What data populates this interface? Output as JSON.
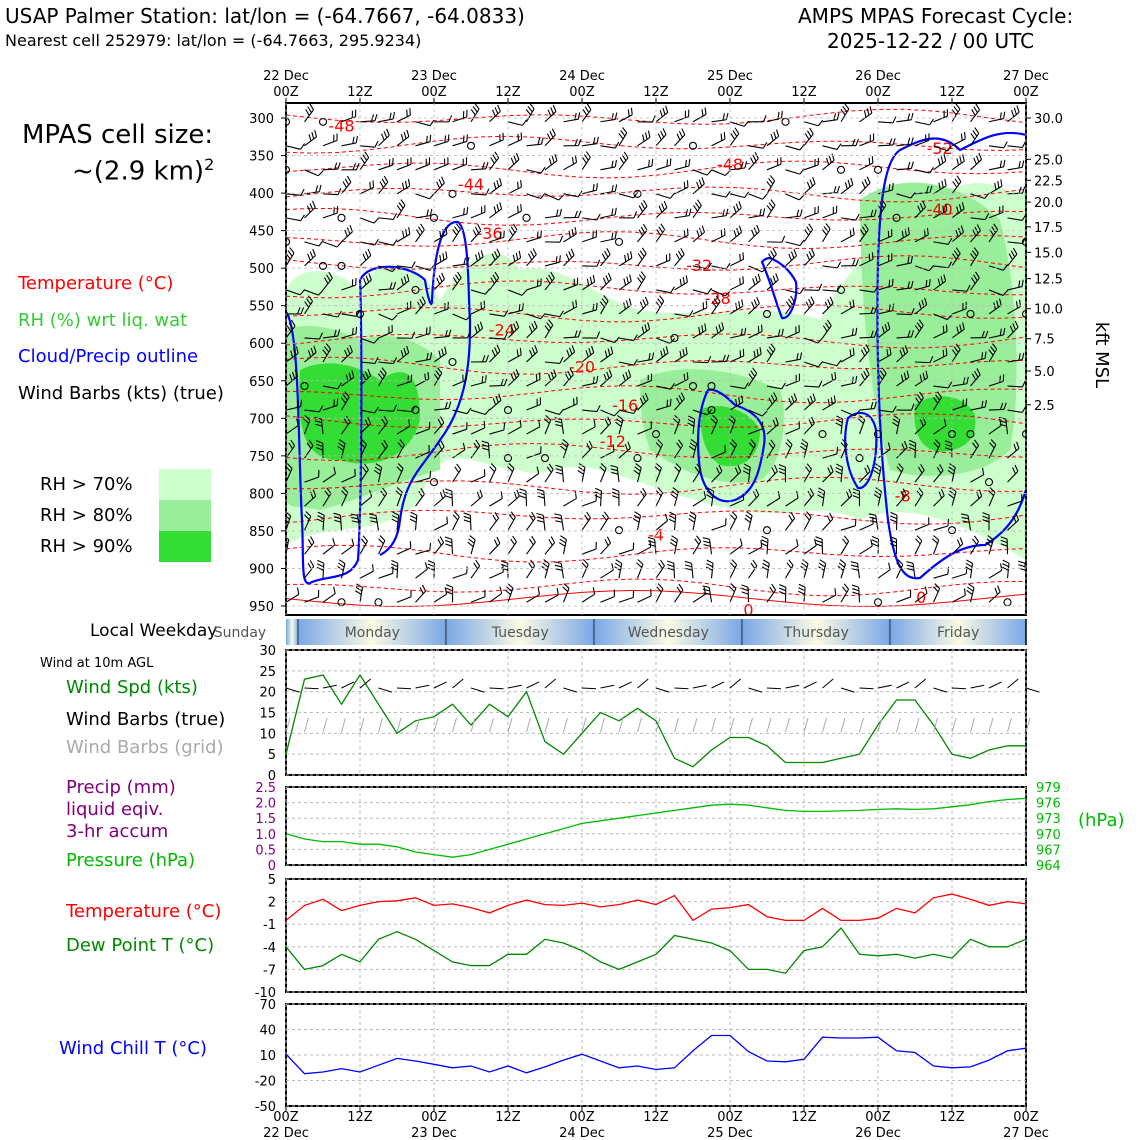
{
  "header": {
    "title_left": "USAP Palmer Station: lat/lon = (-64.7667, -64.0833)",
    "subtitle_left": "Nearest cell 252979: lat/lon = (-64.7663, 295.9234)",
    "title_right_1": "AMPS MPAS Forecast Cycle:",
    "title_right_2": "2025-12-22 / 00 UTC"
  },
  "cell_size": {
    "line1": "MPAS cell size:",
    "line2": "~(2.9 km)",
    "sup": "2"
  },
  "legend": {
    "temperature": "Temperature (°C)",
    "rh": "RH (%) wrt liq. wat",
    "cloud": "Cloud/Precip outline",
    "barbs": "Wind Barbs (kts) (true)",
    "rh70": "RH > 70%",
    "rh80": "RH > 80%",
    "rh90": "RH > 90%"
  },
  "weekday_label": "Local Weekday",
  "wind_header": "Wind at 10m AGL",
  "panel_labels": {
    "wind_spd": "Wind Spd (kts)",
    "wind_true": "Wind Barbs (true)",
    "wind_grid": "Wind Barbs (grid)",
    "precip1": "Precip (mm)",
    "precip2": "liquid eqiv.",
    "precip3": "3-hr accum",
    "pressure": "Pressure (hPa)",
    "pressure_unit": "(hPa)",
    "temp": "Temperature (°C)",
    "dew": "Dew Point T (°C)",
    "windchill": "Wind Chill T (°C)"
  },
  "colors": {
    "temp": "#ff0000",
    "rh": "#33cc33",
    "cloud": "#0000ff",
    "wind": "#008800",
    "precip": "#800080",
    "pressure": "#00bb00",
    "grid_barb": "#aaaaaa",
    "rh70": "#ccffcc",
    "rh80": "#99ee99",
    "rh90": "#33dd33"
  },
  "chart_data": [
    {
      "type": "time-height",
      "x_top_ticks": [
        {
          "h": 0,
          "top": "22 Dec",
          "bottom": "00Z"
        },
        {
          "h": 12,
          "top": "",
          "bottom": "12Z"
        },
        {
          "h": 24,
          "top": "23 Dec",
          "bottom": "00Z"
        },
        {
          "h": 36,
          "top": "",
          "bottom": "12Z"
        },
        {
          "h": 48,
          "top": "24 Dec",
          "bottom": "00Z"
        },
        {
          "h": 60,
          "top": "",
          "bottom": "12Z"
        },
        {
          "h": 72,
          "top": "25 Dec",
          "bottom": "00Z"
        },
        {
          "h": 84,
          "top": "",
          "bottom": "12Z"
        },
        {
          "h": 96,
          "top": "26 Dec",
          "bottom": "00Z"
        },
        {
          "h": 108,
          "top": "",
          "bottom": "12Z"
        },
        {
          "h": 120,
          "top": "27 Dec",
          "bottom": "00Z"
        }
      ],
      "y_pressure_ticks": [
        300,
        350,
        400,
        450,
        500,
        550,
        600,
        650,
        700,
        750,
        800,
        850,
        900,
        950
      ],
      "y_kft_ticks": [
        {
          "p": 300,
          "label": "30.0"
        },
        {
          "p": 355,
          "label": "25.0"
        },
        {
          "p": 383,
          "label": "22.5"
        },
        {
          "p": 412,
          "label": "20.0"
        },
        {
          "p": 445,
          "label": "17.5"
        },
        {
          "p": 479,
          "label": "15.0"
        },
        {
          "p": 514,
          "label": "12.5"
        },
        {
          "p": 554,
          "label": "10.0"
        },
        {
          "p": 594,
          "label": "7.5"
        },
        {
          "p": 637,
          "label": "5.0"
        },
        {
          "p": 682,
          "label": "2.5"
        }
      ],
      "y_right_label": "kft MSL",
      "temperature_contours": [
        {
          "label": "-48",
          "h": 9,
          "p": 310
        },
        {
          "label": "-48",
          "h": 72,
          "p": 361
        },
        {
          "label": "-44",
          "h": 30,
          "p": 388
        },
        {
          "label": "-40",
          "h": 106,
          "p": 421
        },
        {
          "label": "-36",
          "h": 33,
          "p": 453
        },
        {
          "label": "-32",
          "h": 67,
          "p": 496
        },
        {
          "label": "-28",
          "h": 70,
          "p": 540
        },
        {
          "label": "-24",
          "h": 35,
          "p": 582
        },
        {
          "label": "-20",
          "h": 48,
          "p": 631
        },
        {
          "label": "-16",
          "h": 55,
          "p": 682
        },
        {
          "label": "-12",
          "h": 53,
          "p": 730
        },
        {
          "label": "-8",
          "h": 100,
          "p": 803
        },
        {
          "label": "-4",
          "h": 60,
          "p": 855
        },
        {
          "label": "0",
          "h": 75,
          "p": 955
        },
        {
          "label": "0",
          "h": 103,
          "p": 938
        },
        {
          "label": "-52",
          "h": 106,
          "p": 340
        }
      ]
    },
    {
      "type": "line",
      "title": "Wind Spd (kts)",
      "x_hours": [
        0,
        3,
        6,
        9,
        12,
        15,
        18,
        21,
        24,
        27,
        30,
        33,
        36,
        39,
        42,
        45,
        48,
        51,
        54,
        57,
        60,
        63,
        66,
        69,
        72,
        75,
        78,
        81,
        84,
        87,
        90,
        93,
        96,
        99,
        102,
        105,
        108,
        111,
        114,
        117,
        120
      ],
      "values": [
        5,
        23,
        24,
        17,
        24,
        17,
        10,
        13,
        14,
        17,
        12,
        17,
        14,
        20,
        8,
        5,
        10,
        15,
        13,
        16,
        13,
        4,
        2,
        6,
        9,
        9,
        7,
        3,
        3,
        3,
        4,
        5,
        12,
        18,
        18,
        12,
        5,
        4,
        6,
        7,
        7
      ],
      "ylim": [
        0,
        30
      ],
      "yticks": [
        0,
        5,
        10,
        15,
        20,
        25,
        30
      ]
    },
    {
      "type": "line",
      "series": [
        {
          "name": "Pressure (hPa)",
          "x_hours": [
            0,
            3,
            6,
            9,
            12,
            15,
            18,
            21,
            24,
            27,
            30,
            33,
            36,
            39,
            42,
            45,
            48,
            51,
            54,
            57,
            60,
            63,
            66,
            69,
            72,
            75,
            78,
            81,
            84,
            87,
            90,
            93,
            96,
            99,
            102,
            105,
            108,
            111,
            114,
            117,
            120
          ],
          "values": [
            970,
            969,
            968.5,
            968.5,
            968,
            968,
            967.5,
            966.5,
            966,
            965.5,
            966,
            967,
            968,
            969,
            970,
            971,
            972,
            972.5,
            973,
            973.5,
            974,
            974.5,
            975,
            975.5,
            975.7,
            975.5,
            975,
            974.5,
            974.3,
            974.3,
            974.4,
            974.5,
            974.7,
            974.8,
            974.7,
            974.8,
            975.2,
            975.6,
            976.2,
            976.6,
            976.8
          ]
        },
        {
          "name": "Precip (mm)",
          "values": []
        }
      ],
      "precip_ylim": [
        0,
        2.5
      ],
      "precip_yticks": [
        "0",
        "0.5",
        "1.0",
        "1.5",
        "2.0",
        "2.5"
      ],
      "pressure_ylim": [
        964,
        979
      ],
      "pressure_yticks": [
        "964",
        "967",
        "970",
        "973",
        "976",
        "979"
      ]
    },
    {
      "type": "line",
      "series": [
        {
          "name": "Temperature (°C)",
          "values": [
            -0.5,
            1.5,
            2.3,
            0.8,
            1.5,
            2,
            2.1,
            2.5,
            1.5,
            1.7,
            1.2,
            0.5,
            1.5,
            2.2,
            1.6,
            1.5,
            1.8,
            1.3,
            1.6,
            2.2,
            1.6,
            2.8,
            -0.5,
            1,
            1.2,
            1.6,
            0,
            -0.5,
            -0.5,
            1.1,
            -0.5,
            -0.5,
            -0.2,
            1.1,
            0.5,
            2.5,
            3,
            2.3,
            1.5,
            2,
            1.7
          ]
        },
        {
          "name": "Dew Point T (°C)",
          "values": [
            -4,
            -7,
            -6.5,
            -5,
            -6,
            -3,
            -2,
            -3,
            -4.5,
            -6,
            -6.5,
            -6.5,
            -5,
            -5,
            -3,
            -3.5,
            -4.5,
            -6,
            -7,
            -6,
            -5,
            -2.5,
            -3,
            -3.5,
            -4.5,
            -7,
            -7,
            -7.5,
            -4.5,
            -4,
            -1.5,
            -5,
            -5.2,
            -5,
            -5.5,
            -5,
            -5.5,
            -3,
            -4,
            -4,
            -3
          ]
        }
      ],
      "x_hours": [
        0,
        3,
        6,
        9,
        12,
        15,
        18,
        21,
        24,
        27,
        30,
        33,
        36,
        39,
        42,
        45,
        48,
        51,
        54,
        57,
        60,
        63,
        66,
        69,
        72,
        75,
        78,
        81,
        84,
        87,
        90,
        93,
        96,
        99,
        102,
        105,
        108,
        111,
        114,
        117,
        120
      ],
      "ylim": [
        -10,
        5
      ],
      "yticks": [
        "-10",
        "-7",
        "-4",
        "-1",
        "2",
        "5"
      ]
    },
    {
      "type": "line",
      "title": "Wind Chill T (°C)",
      "x_hours": [
        0,
        3,
        6,
        9,
        12,
        15,
        18,
        21,
        24,
        27,
        30,
        33,
        36,
        39,
        42,
        45,
        48,
        51,
        54,
        57,
        60,
        63,
        66,
        69,
        72,
        75,
        78,
        81,
        84,
        87,
        90,
        93,
        96,
        99,
        102,
        105,
        108,
        111,
        114,
        117,
        120
      ],
      "values": [
        11,
        -12,
        -10,
        -6,
        -10,
        -2,
        6,
        3,
        -1,
        -5,
        -3,
        -10,
        -3,
        -11,
        -4,
        4,
        11,
        3,
        -5,
        -3,
        -7,
        -5,
        15,
        33,
        33,
        14,
        3,
        2,
        5,
        31,
        30,
        30,
        31,
        15,
        13,
        -3,
        -5,
        -4,
        4,
        15,
        18
      ],
      "ylim": [
        -50,
        70
      ],
      "yticks": [
        "-50",
        "-20",
        "10",
        "40",
        "70"
      ]
    }
  ],
  "weekdays": [
    {
      "label": "Sunday",
      "h0": -1,
      "h1": 2
    },
    {
      "label": "Monday",
      "h0": 2,
      "h1": 26
    },
    {
      "label": "Tuesday",
      "h0": 26,
      "h1": 50
    },
    {
      "label": "Wednesday",
      "h0": 50,
      "h1": 74
    },
    {
      "label": "Thursday",
      "h0": 74,
      "h1": 98
    },
    {
      "label": "Friday",
      "h0": 98,
      "h1": 120
    }
  ],
  "bottom_axis": [
    {
      "h": 0,
      "top": "00Z",
      "bottom": "22 Dec"
    },
    {
      "h": 12,
      "top": "12Z",
      "bottom": ""
    },
    {
      "h": 24,
      "top": "00Z",
      "bottom": "23 Dec"
    },
    {
      "h": 36,
      "top": "12Z",
      "bottom": ""
    },
    {
      "h": 48,
      "top": "00Z",
      "bottom": "24 Dec"
    },
    {
      "h": 60,
      "top": "12Z",
      "bottom": ""
    },
    {
      "h": 72,
      "top": "00Z",
      "bottom": "25 Dec"
    },
    {
      "h": 84,
      "top": "12Z",
      "bottom": ""
    },
    {
      "h": 96,
      "top": "00Z",
      "bottom": "26 Dec"
    },
    {
      "h": 108,
      "top": "12Z",
      "bottom": ""
    },
    {
      "h": 120,
      "top": "00Z",
      "bottom": "27 Dec"
    }
  ]
}
